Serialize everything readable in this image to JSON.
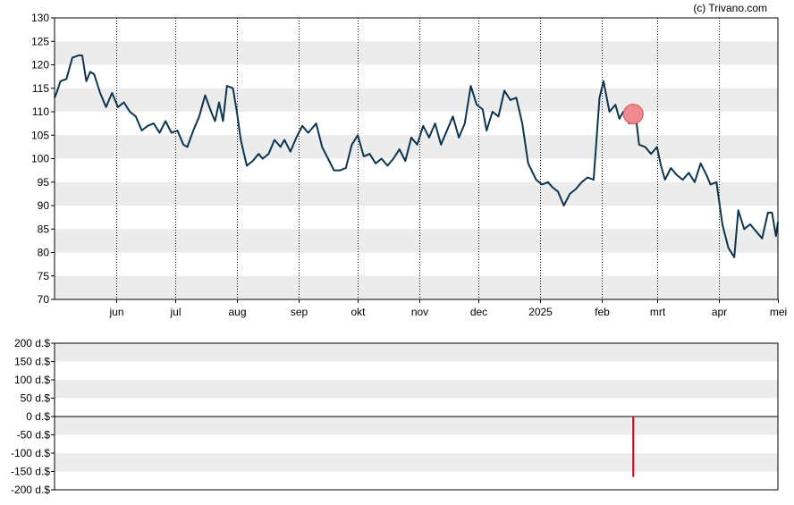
{
  "credit": "(c) Trivano.com",
  "colors": {
    "price_line": "#0d3550",
    "band": "#ececec",
    "marker_fill": "#f08a8f",
    "marker_stroke": "#e0505a",
    "volume_bar": "#e0001b",
    "frame": "#000000",
    "month_grid": "#000000"
  },
  "chart_data": [
    {
      "type": "line",
      "ylim": [
        70,
        130
      ],
      "yticks": [
        130,
        125,
        120,
        115,
        110,
        105,
        100,
        95,
        90,
        85,
        80,
        75,
        70
      ],
      "x_start": "2024-05-01",
      "x_end": "2025-05-01",
      "month_ticks": [
        {
          "label": "jun",
          "date": "2024-06-01"
        },
        {
          "label": "jul",
          "date": "2024-07-01"
        },
        {
          "label": "aug",
          "date": "2024-08-01"
        },
        {
          "label": "sep",
          "date": "2024-09-01"
        },
        {
          "label": "okt",
          "date": "2024-10-01"
        },
        {
          "label": "nov",
          "date": "2024-11-01"
        },
        {
          "label": "dec",
          "date": "2024-12-01"
        },
        {
          "label": "2025",
          "date": "2025-01-01"
        },
        {
          "label": "feb",
          "date": "2025-02-01"
        },
        {
          "label": "mrt",
          "date": "2025-03-01"
        },
        {
          "label": "apr",
          "date": "2025-04-01"
        },
        {
          "label": "mei",
          "date": "2025-05-01"
        }
      ],
      "marker": {
        "date": "2025-02-17",
        "value": 109.5
      },
      "series": [
        {
          "points": [
            [
              "2024-05-01",
              113
            ],
            [
              "2024-05-02",
              114
            ],
            [
              "2024-05-04",
              116.5
            ],
            [
              "2024-05-07",
              117
            ],
            [
              "2024-05-10",
              121.5
            ],
            [
              "2024-05-13",
              122
            ],
            [
              "2024-05-15",
              122
            ],
            [
              "2024-05-17",
              116.5
            ],
            [
              "2024-05-19",
              118.5
            ],
            [
              "2024-05-21",
              118
            ],
            [
              "2024-05-24",
              114
            ],
            [
              "2024-05-27",
              111
            ],
            [
              "2024-05-30",
              114
            ],
            [
              "2024-06-02",
              111
            ],
            [
              "2024-06-05",
              112
            ],
            [
              "2024-06-08",
              110
            ],
            [
              "2024-06-11",
              109
            ],
            [
              "2024-06-14",
              106
            ],
            [
              "2024-06-17",
              107
            ],
            [
              "2024-06-20",
              107.5
            ],
            [
              "2024-06-23",
              105.5
            ],
            [
              "2024-06-26",
              108
            ],
            [
              "2024-06-29",
              105.5
            ],
            [
              "2024-07-02",
              106
            ],
            [
              "2024-07-05",
              103
            ],
            [
              "2024-07-07",
              102.5
            ],
            [
              "2024-07-10",
              106
            ],
            [
              "2024-07-13",
              109
            ],
            [
              "2024-07-16",
              113.5
            ],
            [
              "2024-07-19",
              110
            ],
            [
              "2024-07-21",
              108
            ],
            [
              "2024-07-23",
              112
            ],
            [
              "2024-07-25",
              108
            ],
            [
              "2024-07-27",
              115.5
            ],
            [
              "2024-07-30",
              115
            ],
            [
              "2024-08-01",
              110
            ],
            [
              "2024-08-03",
              104
            ],
            [
              "2024-08-06",
              98.5
            ],
            [
              "2024-08-09",
              99.5
            ],
            [
              "2024-08-12",
              101
            ],
            [
              "2024-08-14",
              100
            ],
            [
              "2024-08-17",
              101
            ],
            [
              "2024-08-20",
              104
            ],
            [
              "2024-08-23",
              102.5
            ],
            [
              "2024-08-25",
              104
            ],
            [
              "2024-08-28",
              101.5
            ],
            [
              "2024-08-31",
              104.5
            ],
            [
              "2024-09-03",
              107
            ],
            [
              "2024-09-06",
              105.5
            ],
            [
              "2024-09-10",
              107.5
            ],
            [
              "2024-09-13",
              102.5
            ],
            [
              "2024-09-16",
              100
            ],
            [
              "2024-09-19",
              97.5
            ],
            [
              "2024-09-22",
              97.5
            ],
            [
              "2024-09-25",
              98
            ],
            [
              "2024-09-28",
              103
            ],
            [
              "2024-10-01",
              105
            ],
            [
              "2024-10-04",
              100.5
            ],
            [
              "2024-10-07",
              101
            ],
            [
              "2024-10-10",
              99
            ],
            [
              "2024-10-13",
              100
            ],
            [
              "2024-10-16",
              98.5
            ],
            [
              "2024-10-19",
              100
            ],
            [
              "2024-10-22",
              102
            ],
            [
              "2024-10-25",
              99.5
            ],
            [
              "2024-10-28",
              104.5
            ],
            [
              "2024-10-31",
              103
            ],
            [
              "2024-11-03",
              107
            ],
            [
              "2024-11-06",
              104.5
            ],
            [
              "2024-11-09",
              107.5
            ],
            [
              "2024-11-12",
              103
            ],
            [
              "2024-11-15",
              106
            ],
            [
              "2024-11-18",
              109
            ],
            [
              "2024-11-21",
              104.5
            ],
            [
              "2024-11-24",
              107.5
            ],
            [
              "2024-11-27",
              115.5
            ],
            [
              "2024-11-30",
              111.5
            ],
            [
              "2024-12-03",
              110.5
            ],
            [
              "2024-12-05",
              106
            ],
            [
              "2024-12-08",
              110
            ],
            [
              "2024-12-11",
              109
            ],
            [
              "2024-12-14",
              114.5
            ],
            [
              "2024-12-17",
              112.5
            ],
            [
              "2024-12-20",
              113
            ],
            [
              "2024-12-23",
              107.5
            ],
            [
              "2024-12-26",
              99
            ],
            [
              "2024-12-30",
              95.5
            ],
            [
              "2025-01-02",
              94.5
            ],
            [
              "2025-01-05",
              95
            ],
            [
              "2025-01-07",
              94
            ],
            [
              "2025-01-10",
              93
            ],
            [
              "2025-01-13",
              90
            ],
            [
              "2025-01-16",
              92.5
            ],
            [
              "2025-01-19",
              93.5
            ],
            [
              "2025-01-22",
              95
            ],
            [
              "2025-01-25",
              96
            ],
            [
              "2025-01-28",
              95.5
            ],
            [
              "2025-01-31",
              113
            ],
            [
              "2025-02-02",
              116.5
            ],
            [
              "2025-02-05",
              110
            ],
            [
              "2025-02-08",
              111.5
            ],
            [
              "2025-02-10",
              108.5
            ],
            [
              "2025-02-12",
              110
            ],
            [
              "2025-02-15",
              107.5
            ],
            [
              "2025-02-18",
              110
            ],
            [
              "2025-02-20",
              103
            ],
            [
              "2025-02-23",
              102.5
            ],
            [
              "2025-02-26",
              101
            ],
            [
              "2025-03-01",
              102.5
            ],
            [
              "2025-03-03",
              98.5
            ],
            [
              "2025-03-05",
              95.5
            ],
            [
              "2025-03-08",
              98
            ],
            [
              "2025-03-11",
              96.5
            ],
            [
              "2025-03-14",
              95.5
            ],
            [
              "2025-03-17",
              97
            ],
            [
              "2025-03-20",
              95
            ],
            [
              "2025-03-23",
              99
            ],
            [
              "2025-03-26",
              96.5
            ],
            [
              "2025-03-28",
              94.5
            ],
            [
              "2025-03-31",
              95
            ],
            [
              "2025-04-03",
              86
            ],
            [
              "2025-04-06",
              81
            ],
            [
              "2025-04-09",
              79
            ],
            [
              "2025-04-11",
              89
            ],
            [
              "2025-04-14",
              85
            ],
            [
              "2025-04-17",
              86
            ],
            [
              "2025-04-20",
              84.5
            ],
            [
              "2025-04-23",
              83
            ],
            [
              "2025-04-26",
              88.5
            ],
            [
              "2025-04-28",
              88.5
            ],
            [
              "2025-04-30",
              83.5
            ],
            [
              "2025-05-01",
              86.5
            ]
          ]
        }
      ]
    },
    {
      "type": "bar",
      "ylim": [
        -200,
        200
      ],
      "yticks": [
        "200 d.$",
        "150 d.$",
        "100 d.$",
        "50 d.$",
        "0 d.$",
        "-50 d.$",
        "-100 d.$",
        "-150 d.$",
        "-200 d.$"
      ],
      "ytick_values": [
        200,
        150,
        100,
        50,
        0,
        -50,
        -100,
        -150,
        -200
      ],
      "bars": [
        {
          "date": "2025-02-17",
          "value": -165
        }
      ]
    }
  ]
}
